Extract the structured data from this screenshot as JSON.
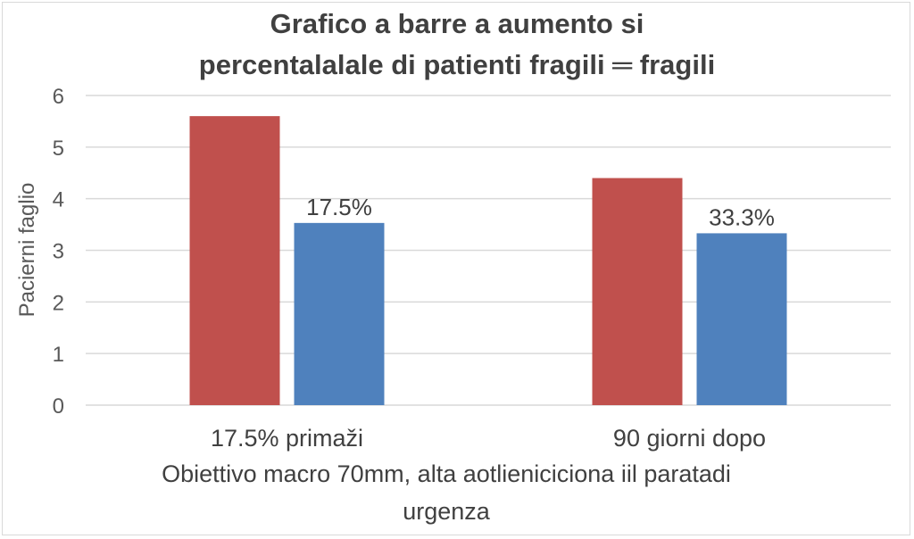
{
  "chart_data": {
    "type": "bar",
    "title_lines": [
      "Grafico a barre a aumento si",
      "percentalalale di patienti fragili ═ fragili"
    ],
    "ylabel": "Pacierni faglio",
    "xlabel_lines": [
      "Obiettivo macro 70mm, alta aotlieniciciona iil paratadi",
      "urgenza"
    ],
    "categories": [
      "17.5% primaži",
      "90 giorni dopo"
    ],
    "ylim": [
      0,
      6
    ],
    "yticks": [
      0,
      1,
      2,
      3,
      4,
      5,
      6
    ],
    "grid": true,
    "series": [
      {
        "color": "#c0504d",
        "values": [
          5.6,
          4.4
        ],
        "data_labels": [
          "",
          ""
        ]
      },
      {
        "color": "#4f81bd",
        "values": [
          3.53,
          3.33
        ],
        "data_labels": [
          "17.5%",
          "33.3%"
        ]
      }
    ]
  }
}
